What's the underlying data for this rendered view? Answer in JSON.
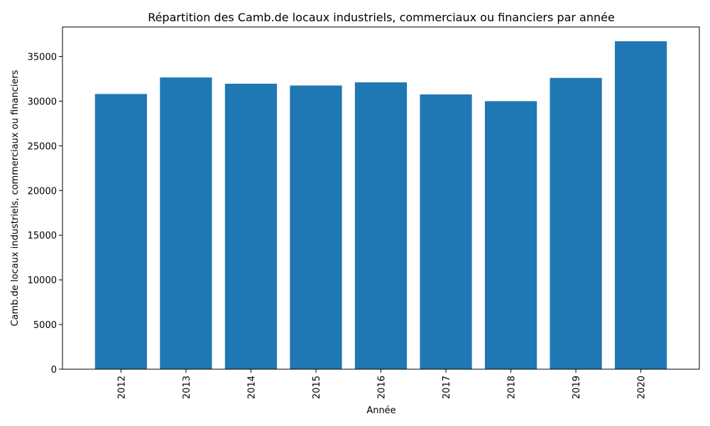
{
  "chart_data": {
    "type": "bar",
    "title": "Répartition des Camb.de  locaux industriels, commerciaux ou financiers par année",
    "xlabel": "Année",
    "ylabel": "Camb.de  locaux industriels, commerciaux ou financiers",
    "categories": [
      "2012",
      "2013",
      "2014",
      "2015",
      "2016",
      "2017",
      "2018",
      "2019",
      "2020"
    ],
    "values": [
      30800,
      32650,
      31950,
      31750,
      32100,
      30750,
      30000,
      32600,
      36700
    ],
    "ylim": [
      0,
      38300
    ],
    "yticks": [
      0,
      5000,
      10000,
      15000,
      20000,
      25000,
      30000,
      35000
    ],
    "bar_color": "#1f77b4",
    "grid": false,
    "legend": "none"
  }
}
